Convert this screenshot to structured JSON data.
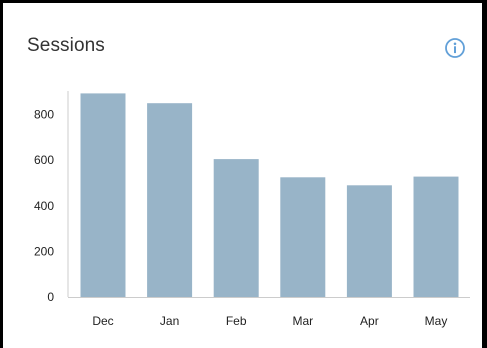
{
  "card": {
    "title": "Sessions",
    "info_icon": "info-circle-icon"
  },
  "colors": {
    "bar": "#98b4c8",
    "info_icon": "#62a0d8",
    "axis": "#cccccc"
  },
  "chart_data": {
    "type": "bar",
    "title": "Sessions",
    "xlabel": "",
    "ylabel": "",
    "categories": [
      "Dec",
      "Jan",
      "Feb",
      "Mar",
      "Apr",
      "May"
    ],
    "values": [
      893,
      850,
      605,
      525,
      490,
      528
    ],
    "ylim": [
      0,
      900
    ],
    "yticks": [
      0,
      200,
      400,
      600,
      800
    ],
    "grid": false,
    "legend": "none"
  }
}
